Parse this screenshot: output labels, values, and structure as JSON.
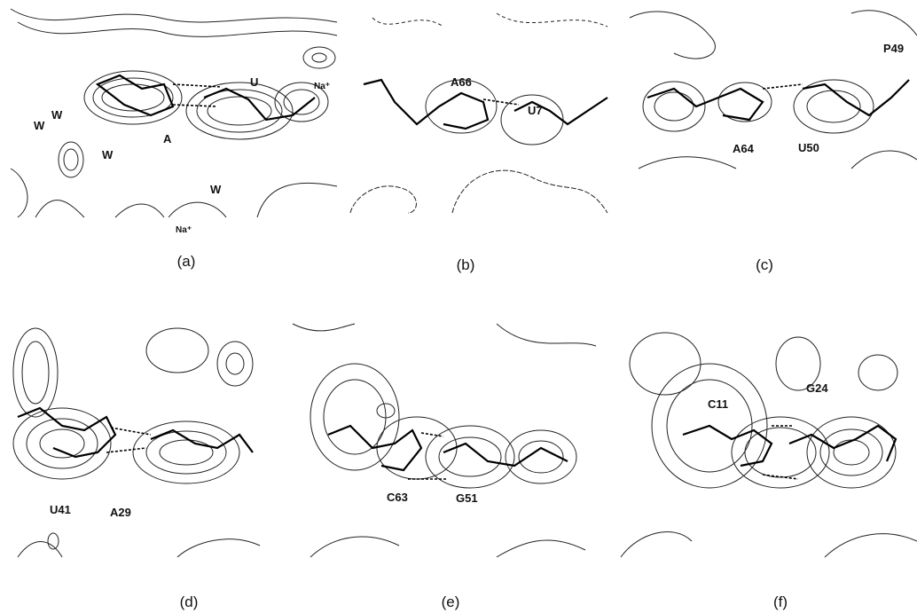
{
  "panels": [
    {
      "caption": "(a)",
      "labels": [
        "U",
        "A",
        "W",
        "W",
        "W",
        "W",
        "Na⁺",
        "Na⁺"
      ]
    },
    {
      "caption": "(b)",
      "labels": [
        "A66",
        "U7"
      ]
    },
    {
      "caption": "(c)",
      "labels": [
        "P49",
        "A64",
        "U50"
      ]
    },
    {
      "caption": "(d)",
      "labels": [
        "U41",
        "A29"
      ]
    },
    {
      "caption": "(e)",
      "labels": [
        "C63",
        "G51"
      ]
    },
    {
      "caption": "(f)",
      "labels": [
        "C11",
        "G24"
      ]
    }
  ]
}
